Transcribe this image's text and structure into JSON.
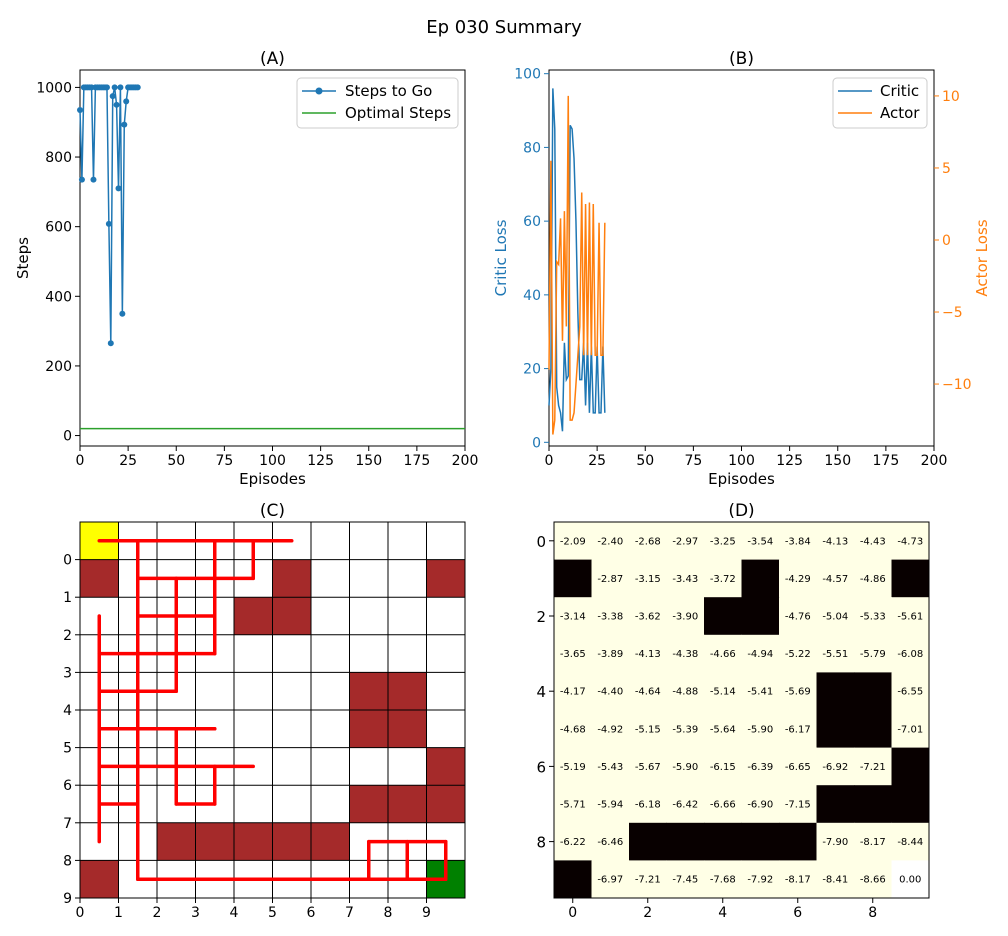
{
  "figure": {
    "suptitle": "Ep 030 Summary"
  },
  "colors": {
    "blue": "#1f77b4",
    "orange": "#ff7f0e",
    "green": "#2ca02c",
    "obstacle": "#a52a2a",
    "path": "#ff0000",
    "start": "#ffff00",
    "goal": "#008000"
  },
  "chart_data": [
    {
      "type": "line",
      "title": "(A)",
      "xlabel": "Episodes",
      "ylabel": "Steps",
      "xlim": [
        0,
        200
      ],
      "ylim": [
        -30,
        1050
      ],
      "xticks": [
        0,
        25,
        50,
        75,
        100,
        125,
        150,
        175,
        200
      ],
      "yticks": [
        0,
        200,
        400,
        600,
        800,
        1000
      ],
      "legend_position": "upper right",
      "series": [
        {
          "name": "Steps to Go",
          "marker": "circle",
          "color": "#1f77b4",
          "x": [
            0,
            1,
            2,
            3,
            4,
            5,
            6,
            7,
            8,
            9,
            10,
            11,
            12,
            13,
            14,
            15,
            16,
            17,
            18,
            19,
            20,
            21,
            22,
            23,
            24,
            25,
            26,
            27,
            28,
            29,
            30
          ],
          "y": [
            935,
            735,
            1000,
            1000,
            1000,
            1000,
            1000,
            735,
            1000,
            1000,
            1000,
            1000,
            1000,
            1000,
            1000,
            608,
            265,
            975,
            1000,
            950,
            710,
            1000,
            350,
            893,
            960,
            1000,
            1000,
            1000,
            1000,
            1000,
            1000
          ]
        },
        {
          "name": "Optimal Steps",
          "color": "#2ca02c",
          "x": [
            0,
            200
          ],
          "y": [
            20,
            20
          ]
        }
      ]
    },
    {
      "type": "line",
      "title": "(B)",
      "xlabel": "Episodes",
      "ylabel": "Critic Loss",
      "ylabel_right": "Actor Loss",
      "xlim": [
        0,
        200
      ],
      "ylim": [
        -1,
        101
      ],
      "ylim_right": [
        -14.3,
        11.8
      ],
      "xticks": [
        0,
        25,
        50,
        75,
        100,
        125,
        150,
        175,
        200
      ],
      "yticks": [
        0,
        20,
        40,
        60,
        80,
        100
      ],
      "yticks_right": [
        "10",
        "5",
        "0",
        "−5",
        "−10"
      ],
      "yticks_right_values": [
        10,
        5,
        0,
        -5,
        -10
      ],
      "legend_position": "upper right",
      "series": [
        {
          "name": "Critic",
          "axis": "left",
          "color": "#1f77b4",
          "x": [
            0,
            1,
            2,
            3,
            4,
            5,
            6,
            7,
            8,
            9,
            10,
            11,
            12,
            13,
            14,
            15,
            16,
            17,
            18,
            19,
            20,
            21,
            22,
            23,
            24,
            25,
            26,
            27,
            28,
            29
          ],
          "y": [
            10,
            20,
            96,
            85,
            15,
            10,
            8,
            3,
            27,
            17,
            18,
            86,
            85,
            77,
            60,
            35,
            17,
            17,
            27,
            10,
            27,
            8,
            26,
            8,
            8,
            26,
            8,
            8,
            26,
            8
          ]
        },
        {
          "name": "Actor",
          "axis": "right",
          "color": "#ff7f0e",
          "x": [
            0,
            1,
            2,
            3,
            4,
            5,
            6,
            7,
            8,
            9,
            10,
            11,
            12,
            13,
            14,
            15,
            16,
            17,
            18,
            19,
            20,
            21,
            22,
            23,
            24,
            25,
            26,
            27,
            28,
            29
          ],
          "y": [
            -9,
            5.5,
            -13.5,
            -12.5,
            -1.5,
            -1.7,
            1.5,
            -7,
            2,
            -6,
            10,
            -12.5,
            -12.5,
            -12,
            -10,
            -8,
            -6,
            3.3,
            -8,
            2.5,
            -8,
            2.6,
            -8,
            2.5,
            -8,
            -8,
            1.2,
            -8,
            -8,
            1.2
          ]
        }
      ]
    },
    {
      "type": "grid",
      "title": "(C)",
      "rows": 10,
      "cols": 10,
      "xticks": [
        0,
        1,
        2,
        3,
        4,
        5,
        6,
        7,
        8,
        9
      ],
      "yticks": [
        0,
        1,
        2,
        3,
        4,
        5,
        6,
        7,
        8,
        9
      ],
      "start_cell": [
        0,
        0
      ],
      "goal_cell": [
        9,
        9
      ],
      "obstacles": [
        [
          1,
          0
        ],
        [
          1,
          5
        ],
        [
          1,
          9
        ],
        [
          2,
          4
        ],
        [
          2,
          5
        ],
        [
          4,
          7
        ],
        [
          4,
          8
        ],
        [
          5,
          7
        ],
        [
          5,
          8
        ],
        [
          6,
          9
        ],
        [
          7,
          7
        ],
        [
          7,
          8
        ],
        [
          7,
          9
        ],
        [
          8,
          2
        ],
        [
          8,
          3
        ],
        [
          8,
          4
        ],
        [
          8,
          5
        ],
        [
          8,
          6
        ],
        [
          9,
          0
        ]
      ],
      "path_segments": [
        [
          [
            0.5,
            0.5
          ],
          [
            5.5,
            0.5
          ]
        ],
        [
          [
            3.5,
            0.5
          ],
          [
            3.5,
            3.5
          ]
        ],
        [
          [
            4.5,
            0.5
          ],
          [
            4.5,
            1.5
          ]
        ],
        [
          [
            1.5,
            1.5
          ],
          [
            4.5,
            1.5
          ]
        ],
        [
          [
            1.5,
            0.5
          ],
          [
            1.5,
            9.5
          ]
        ],
        [
          [
            1.5,
            2.5
          ],
          [
            3.5,
            2.5
          ]
        ],
        [
          [
            2.5,
            1.5
          ],
          [
            2.5,
            4.5
          ]
        ],
        [
          [
            0.5,
            2.5
          ],
          [
            0.5,
            8.5
          ]
        ],
        [
          [
            0.5,
            3.5
          ],
          [
            3.5,
            3.5
          ]
        ],
        [
          [
            0.5,
            4.5
          ],
          [
            2.5,
            4.5
          ]
        ],
        [
          [
            0.5,
            5.5
          ],
          [
            3.5,
            5.5
          ]
        ],
        [
          [
            1.5,
            5.5
          ],
          [
            3.5,
            5.5
          ]
        ],
        [
          [
            0.5,
            6.5
          ],
          [
            4.5,
            6.5
          ]
        ],
        [
          [
            2.5,
            5.5
          ],
          [
            2.5,
            7.5
          ]
        ],
        [
          [
            3.5,
            6.5
          ],
          [
            3.5,
            7.5
          ]
        ],
        [
          [
            2.5,
            7.5
          ],
          [
            3.5,
            7.5
          ]
        ],
        [
          [
            0.5,
            7.5
          ],
          [
            1.5,
            7.5
          ]
        ],
        [
          [
            1.5,
            9.5
          ],
          [
            9.5,
            9.5
          ]
        ],
        [
          [
            7.5,
            8.5
          ],
          [
            9.5,
            8.5
          ]
        ],
        [
          [
            7.5,
            8.5
          ],
          [
            7.5,
            9.5
          ]
        ],
        [
          [
            8.5,
            8.5
          ],
          [
            8.5,
            9.5
          ]
        ],
        [
          [
            9.5,
            8.5
          ],
          [
            9.5,
            9.5
          ]
        ]
      ]
    },
    {
      "type": "heatmap",
      "title": "(D)",
      "rows": 10,
      "cols": 10,
      "xticks": [
        0,
        2,
        4,
        6,
        8
      ],
      "yticks": [
        0,
        2,
        4,
        6,
        8
      ],
      "values": [
        [
          "-2.09",
          "-2.40",
          "-2.68",
          "-2.97",
          "-3.25",
          "-3.54",
          "-3.84",
          "-4.13",
          "-4.43",
          "-4.73"
        ],
        [
          null,
          "-2.87",
          "-3.15",
          "-3.43",
          "-3.72",
          null,
          "-4.29",
          "-4.57",
          "-4.86",
          null
        ],
        [
          "-3.14",
          "-3.38",
          "-3.62",
          "-3.90",
          null,
          null,
          "-4.76",
          "-5.04",
          "-5.33",
          "-5.61"
        ],
        [
          "-3.65",
          "-3.89",
          "-4.13",
          "-4.38",
          "-4.66",
          "-4.94",
          "-5.22",
          "-5.51",
          "-5.79",
          "-6.08"
        ],
        [
          "-4.17",
          "-4.40",
          "-4.64",
          "-4.88",
          "-5.14",
          "-5.41",
          "-5.69",
          null,
          null,
          "-6.55"
        ],
        [
          "-4.68",
          "-4.92",
          "-5.15",
          "-5.39",
          "-5.64",
          "-5.90",
          "-6.17",
          null,
          null,
          "-7.01"
        ],
        [
          "-5.19",
          "-5.43",
          "-5.67",
          "-5.90",
          "-6.15",
          "-6.39",
          "-6.65",
          "-6.92",
          "-7.21",
          null
        ],
        [
          "-5.71",
          "-5.94",
          "-6.18",
          "-6.42",
          "-6.66",
          "-6.90",
          "-7.15",
          null,
          null,
          null
        ],
        [
          "-6.22",
          "-6.46",
          null,
          null,
          null,
          null,
          null,
          "-7.90",
          "-8.17",
          "-8.44"
        ],
        [
          null,
          "-6.97",
          "-7.21",
          "-7.45",
          "-7.68",
          "-7.92",
          "-8.17",
          "-8.41",
          "-8.66",
          "0.00"
        ]
      ]
    }
  ]
}
